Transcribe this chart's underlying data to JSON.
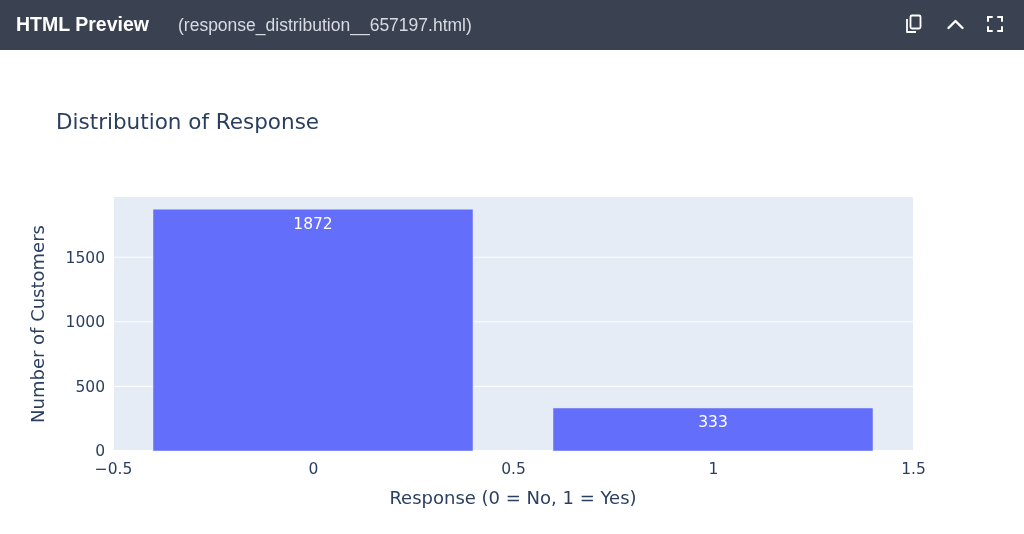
{
  "chart_data": {
    "type": "bar",
    "title": "Distribution of Response",
    "xlabel": "Response (0 = No, 1 = Yes)",
    "ylabel": "Number of Customers",
    "annotations": [
      "HTML Preview",
      "(response_distribution__657197.html)"
    ],
    "x": [
      0,
      1
    ],
    "values": [
      1872,
      333
    ],
    "color": "#636efa",
    "xlim": [
      -0.5,
      1.5
    ],
    "xticks": [
      {
        "value": -0.5,
        "label": "−0.5"
      },
      0,
      0.5,
      1,
      1.5
    ],
    "ylim": [
      0,
      1966
    ],
    "yticks": [
      0,
      500,
      1000,
      1500
    ],
    "grid": "y",
    "data_labels": true
  }
}
